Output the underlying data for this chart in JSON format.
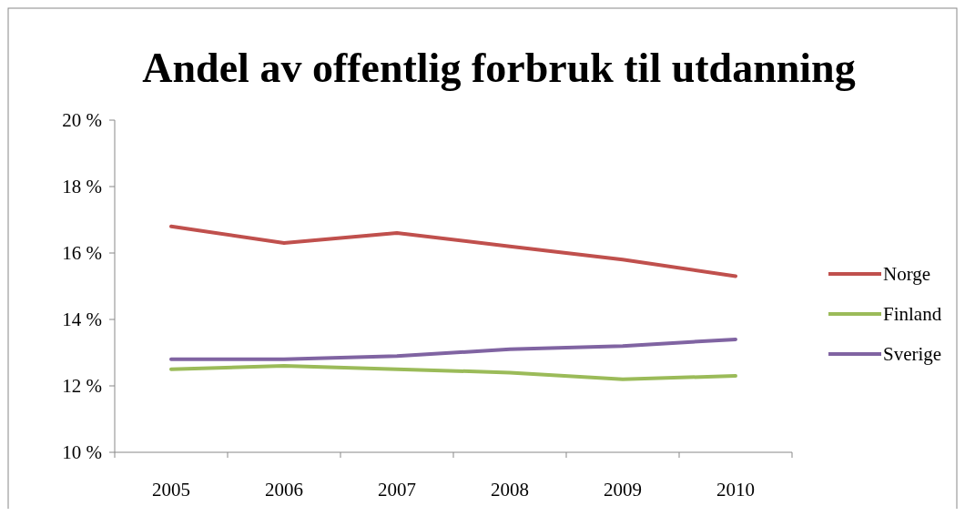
{
  "chart_data": {
    "type": "line",
    "title": "Andel av offentlig forbruk til utdanning",
    "categories": [
      "2005",
      "2006",
      "2007",
      "2008",
      "2009",
      "2010"
    ],
    "series": [
      {
        "name": "Norge",
        "color": "#c0504d",
        "values": [
          16.8,
          16.3,
          16.6,
          16.2,
          15.8,
          15.3
        ]
      },
      {
        "name": "Finland",
        "color": "#9bbb59",
        "values": [
          12.5,
          12.6,
          12.5,
          12.4,
          12.2,
          12.3
        ]
      },
      {
        "name": "Sverige",
        "color": "#8064a2",
        "values": [
          12.8,
          12.8,
          12.9,
          13.1,
          13.2,
          13.4
        ]
      }
    ],
    "ylim": [
      10,
      20
    ],
    "yticks": [
      {
        "value": 10,
        "label": "10 %"
      },
      {
        "value": 12,
        "label": "12 %"
      },
      {
        "value": 14,
        "label": "14 %"
      },
      {
        "value": 16,
        "label": "16 %"
      },
      {
        "value": 18,
        "label": "18 %"
      },
      {
        "value": 20,
        "label": "20 %"
      }
    ],
    "grid": false,
    "legend": "right",
    "marker": "none",
    "line_style": "solid"
  }
}
